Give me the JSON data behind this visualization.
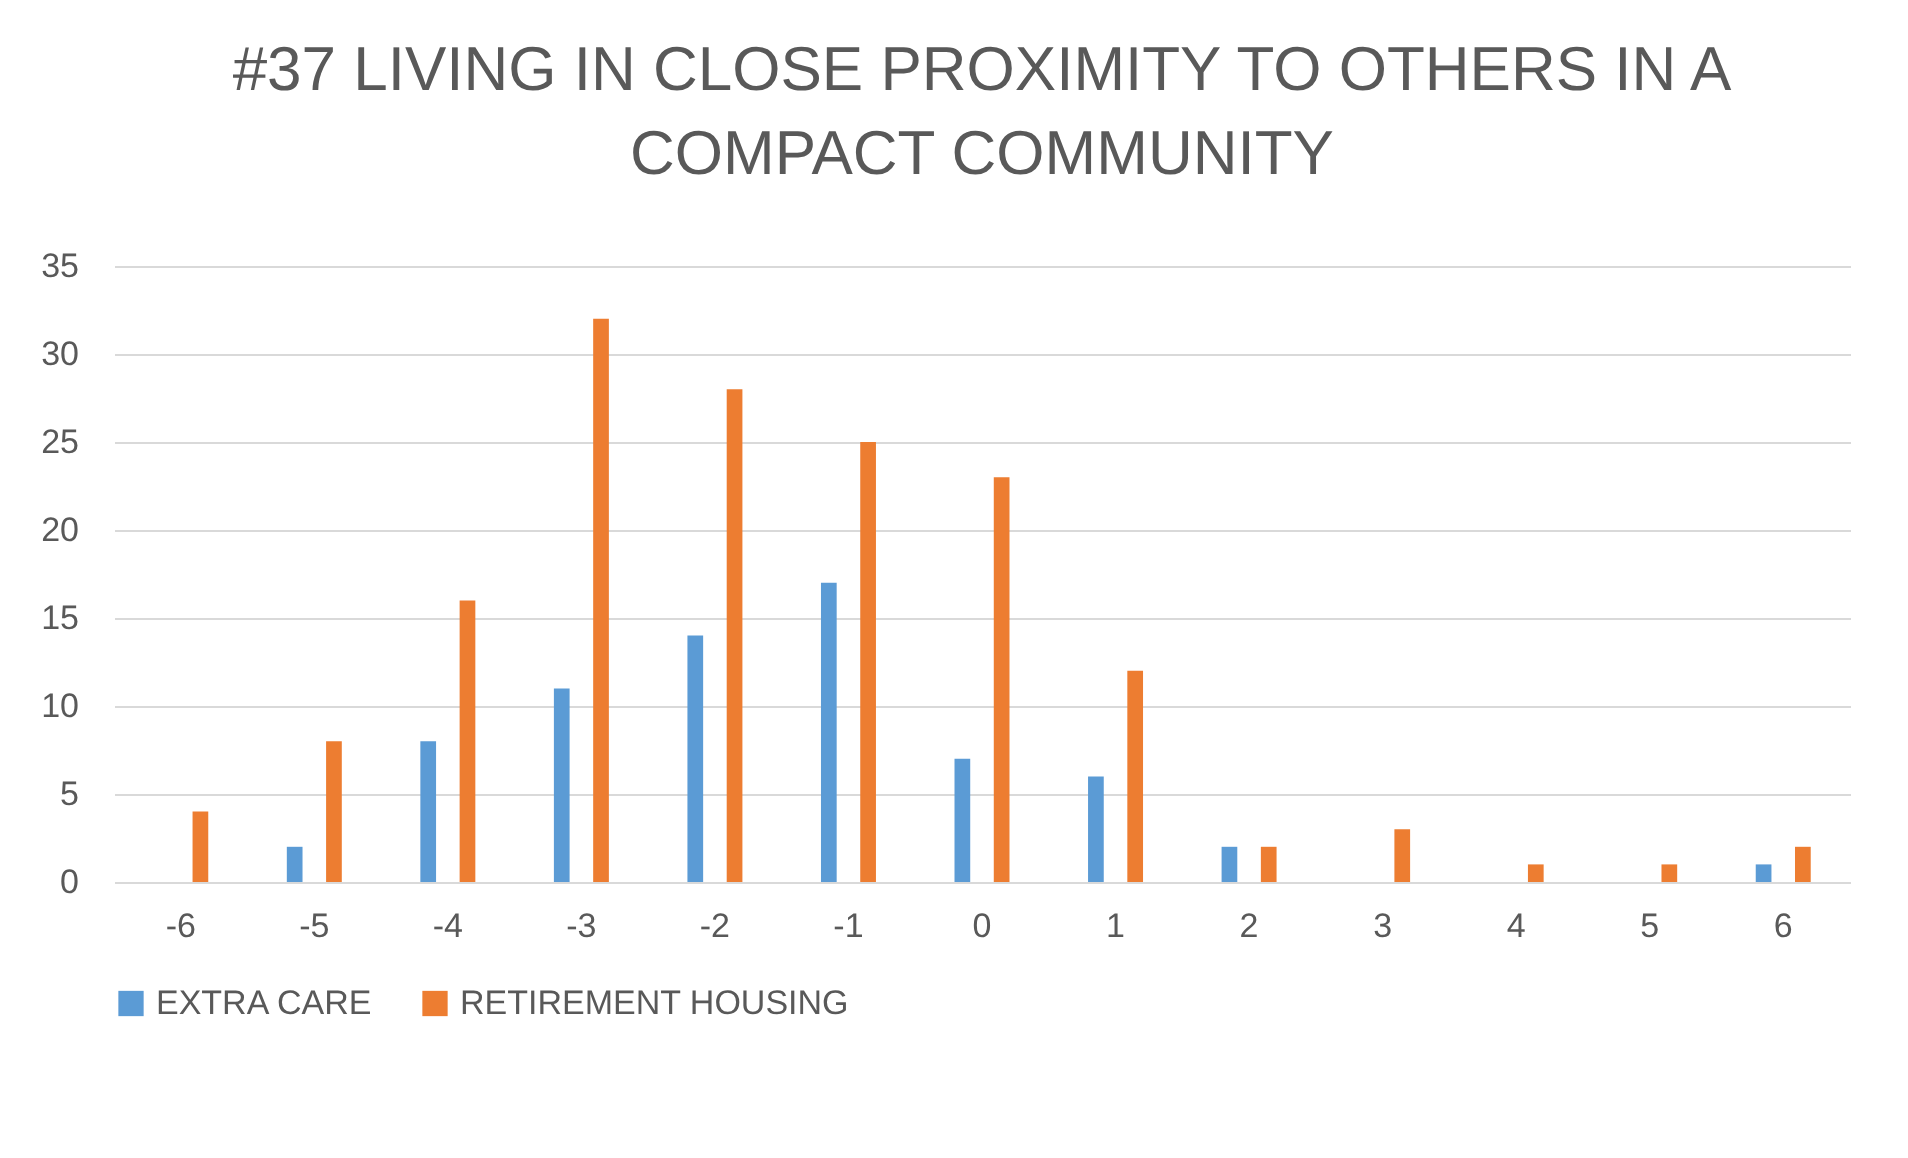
{
  "chart_data": {
    "type": "bar",
    "title": "#37 LIVING IN CLOSE PROXIMITY TO OTHERS IN A COMPACT COMMUNITY",
    "categories": [
      "-6",
      "-5",
      "-4",
      "-3",
      "-2",
      "-1",
      "0",
      "1",
      "2",
      "3",
      "4",
      "5",
      "6"
    ],
    "series": [
      {
        "name": "EXTRA CARE",
        "color": "#5b9bd5",
        "values": [
          0,
          2,
          8,
          11,
          14,
          17,
          7,
          6,
          2,
          0,
          0,
          0,
          1
        ]
      },
      {
        "name": "RETIREMENT HOUSING",
        "color": "#ed7d31",
        "values": [
          4,
          8,
          16,
          32,
          28,
          25,
          23,
          12,
          2,
          3,
          1,
          1,
          2
        ]
      }
    ],
    "ylim": [
      0,
      35
    ],
    "yticks": [
      0,
      5,
      10,
      15,
      20,
      25,
      30,
      35
    ],
    "grid": "y",
    "legend": "bottom"
  }
}
